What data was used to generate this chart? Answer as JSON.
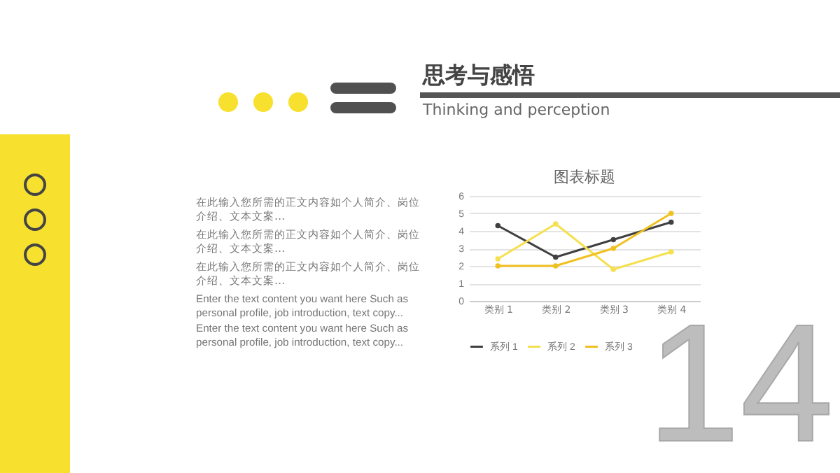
{
  "chart_data": {
    "type": "line",
    "title": "图表标题",
    "categories": [
      "类别 1",
      "类别 2",
      "类别 3",
      "类别 4"
    ],
    "series": [
      {
        "name": "系列 1",
        "color": "#404040",
        "values": [
          4.3,
          2.5,
          3.5,
          4.5
        ]
      },
      {
        "name": "系列 2",
        "color": "#f5e050",
        "values": [
          2.4,
          4.4,
          1.8,
          2.8
        ]
      },
      {
        "name": "系列 3",
        "color": "#f0c020",
        "values": [
          2,
          2,
          3,
          5
        ]
      }
    ],
    "ylim": [
      0,
      6
    ],
    "yticks": [
      0,
      1,
      2,
      3,
      4,
      5,
      6
    ],
    "grid": "y",
    "legend": "bottom",
    "marker": "circle",
    "line_style": "solid",
    "annotations": [
      "思考与感悟",
      "Thinking and perception",
      "在此输入您所需的正文内容如个人简介、岗位介绍、文本文案…",
      "在此输入您所需的正文内容如个人简介、岗位介绍、文本文案…",
      "在此输入您所需的正文内容如个人简介、岗位介绍、文本文案…",
      "Enter the text content you want here Such as personal profile, job introduction, text copy...",
      "Enter the text content you want here Such as personal profile, job introduction, text copy...",
      "14"
    ]
  }
}
